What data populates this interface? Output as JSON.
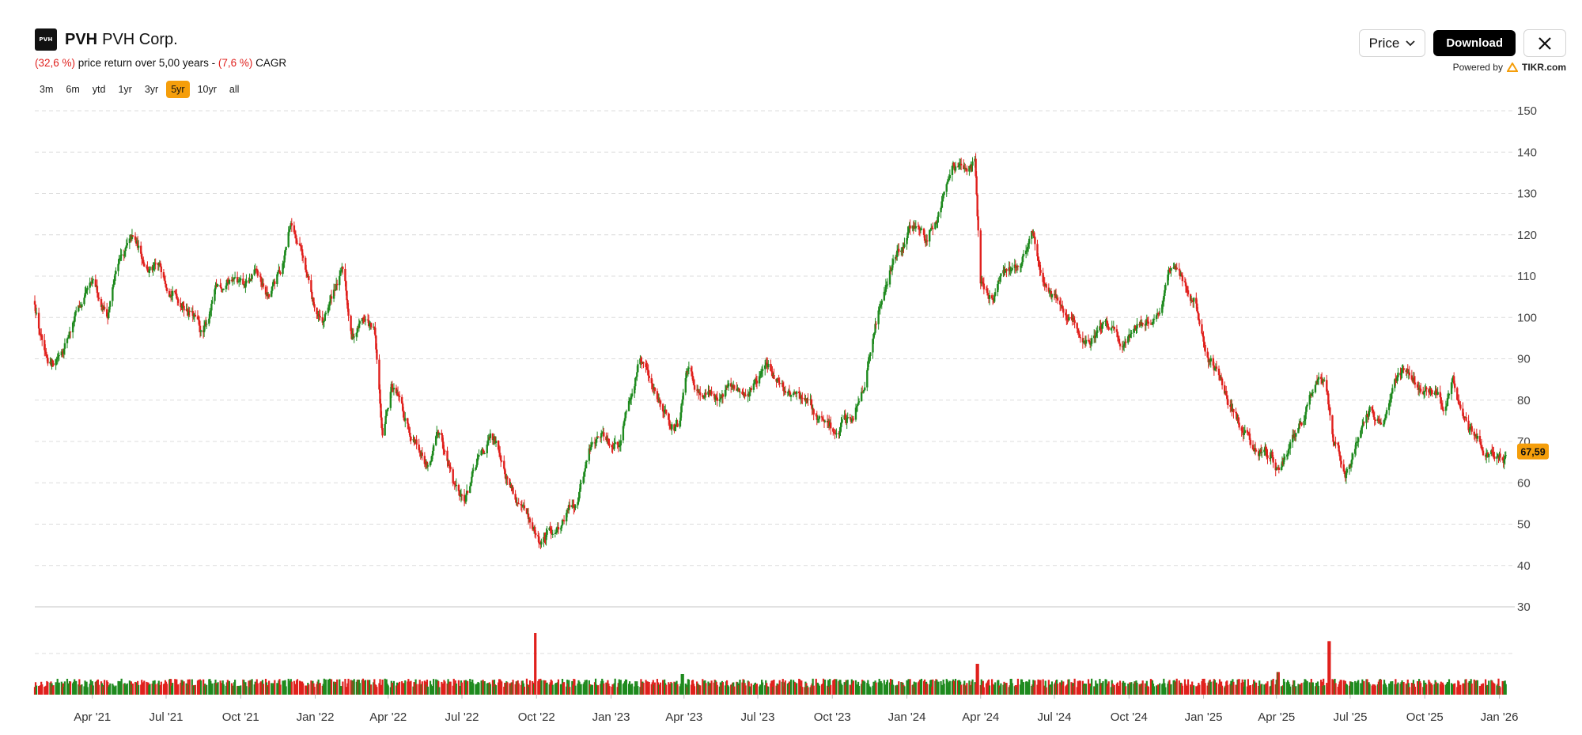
{
  "header": {
    "logo_text": "PVH",
    "ticker": "PVH",
    "company": "PVH Corp.",
    "return_pct": "(32,6 %)",
    "return_text": " price return over 5,00 years - ",
    "cagr_pct": "(7,6 %)",
    "cagr_text": " CAGR"
  },
  "ranges": [
    {
      "label": "3m",
      "active": false
    },
    {
      "label": "6m",
      "active": false
    },
    {
      "label": "ytd",
      "active": false
    },
    {
      "label": "1yr",
      "active": false
    },
    {
      "label": "3yr",
      "active": false
    },
    {
      "label": "5yr",
      "active": true
    },
    {
      "label": "10yr",
      "active": false
    },
    {
      "label": "all",
      "active": false
    }
  ],
  "controls": {
    "price_select": "Price",
    "download_label": "Download",
    "powered_by": "Powered by",
    "brand": "TIKR.com"
  },
  "colors": {
    "up": "#1e8a1e",
    "down": "#e0201d",
    "accent": "#f59e0b",
    "grid": "#dcdcdc"
  },
  "chart_data": {
    "type": "candlestick",
    "title": "",
    "ylim": [
      30,
      150
    ],
    "y_ticks": [
      150,
      140,
      130,
      120,
      110,
      100,
      90,
      80,
      70,
      60,
      50,
      40,
      30
    ],
    "x_ticks": [
      "Apr '21",
      "Jul '21",
      "Oct '21",
      "Jan '22",
      "Apr '22",
      "Jul '22",
      "Oct '22",
      "Jan '23",
      "Apr '23",
      "Jul '23",
      "Oct '23",
      "Jan '24",
      "Apr '24",
      "Jul '24",
      "Oct '24",
      "Jan '25",
      "Apr '25",
      "Jul '25",
      "Oct '25",
      "Jan '26"
    ],
    "x_range": [
      "2021-01-20",
      "2026-01-20"
    ],
    "last_price": "67,59",
    "last_value": 67.59,
    "price_path": [
      [
        "2021-01-20",
        104
      ],
      [
        "2021-02-05",
        86
      ],
      [
        "2021-02-20",
        92
      ],
      [
        "2021-03-10",
        100
      ],
      [
        "2021-04-01",
        106
      ],
      [
        "2021-04-20",
        101
      ],
      [
        "2021-05-05",
        115
      ],
      [
        "2021-05-20",
        118
      ],
      [
        "2021-06-10",
        112
      ],
      [
        "2021-07-01",
        110
      ],
      [
        "2021-07-15",
        106
      ],
      [
        "2021-08-01",
        102
      ],
      [
        "2021-08-15",
        95
      ],
      [
        "2021-09-01",
        106
      ],
      [
        "2021-09-20",
        110
      ],
      [
        "2021-10-05",
        106
      ],
      [
        "2021-10-20",
        110
      ],
      [
        "2021-11-05",
        104
      ],
      [
        "2021-11-20",
        111
      ],
      [
        "2021-12-01",
        123
      ],
      [
        "2021-12-15",
        118
      ],
      [
        "2021-12-28",
        104
      ],
      [
        "2022-01-10",
        97
      ],
      [
        "2022-01-25",
        107
      ],
      [
        "2022-02-05",
        111
      ],
      [
        "2022-02-15",
        95
      ],
      [
        "2022-03-01",
        100
      ],
      [
        "2022-03-15",
        96
      ],
      [
        "2022-03-25",
        70
      ],
      [
        "2022-04-05",
        84
      ],
      [
        "2022-04-20",
        76
      ],
      [
        "2022-05-05",
        72
      ],
      [
        "2022-05-20",
        65
      ],
      [
        "2022-06-05",
        72
      ],
      [
        "2022-06-20",
        60
      ],
      [
        "2022-07-05",
        57
      ],
      [
        "2022-07-20",
        64
      ],
      [
        "2022-08-05",
        70
      ],
      [
        "2022-08-20",
        66
      ],
      [
        "2022-09-05",
        57
      ],
      [
        "2022-09-20",
        50
      ],
      [
        "2022-10-05",
        45
      ],
      [
        "2022-10-20",
        48
      ],
      [
        "2022-11-05",
        52
      ],
      [
        "2022-11-20",
        57
      ],
      [
        "2022-12-05",
        68
      ],
      [
        "2022-12-20",
        72
      ],
      [
        "2023-01-10",
        71
      ],
      [
        "2023-01-25",
        82
      ],
      [
        "2023-02-05",
        90
      ],
      [
        "2023-02-20",
        84
      ],
      [
        "2023-03-10",
        78
      ],
      [
        "2023-03-25",
        73
      ],
      [
        "2023-04-05",
        86
      ],
      [
        "2023-04-20",
        83
      ],
      [
        "2023-05-10",
        81
      ],
      [
        "2023-05-25",
        84
      ],
      [
        "2023-06-10",
        80
      ],
      [
        "2023-06-25",
        84
      ],
      [
        "2023-07-10",
        88
      ],
      [
        "2023-07-25",
        85
      ],
      [
        "2023-08-10",
        82
      ],
      [
        "2023-08-25",
        80
      ],
      [
        "2023-09-10",
        76
      ],
      [
        "2023-09-25",
        73
      ],
      [
        "2023-10-10",
        72
      ],
      [
        "2023-10-25",
        76
      ],
      [
        "2023-11-10",
        86
      ],
      [
        "2023-11-25",
        100
      ],
      [
        "2023-12-10",
        112
      ],
      [
        "2023-12-25",
        118
      ],
      [
        "2024-01-10",
        122
      ],
      [
        "2024-01-25",
        118
      ],
      [
        "2024-02-10",
        128
      ],
      [
        "2024-02-25",
        137
      ],
      [
        "2024-03-10",
        134
      ],
      [
        "2024-03-25",
        140
      ],
      [
        "2024-04-01",
        108
      ],
      [
        "2024-04-15",
        104
      ],
      [
        "2024-05-01",
        110
      ],
      [
        "2024-05-20",
        115
      ],
      [
        "2024-06-05",
        121
      ],
      [
        "2024-06-15",
        110
      ],
      [
        "2024-07-01",
        104
      ],
      [
        "2024-07-20",
        100
      ],
      [
        "2024-08-05",
        92
      ],
      [
        "2024-08-20",
        97
      ],
      [
        "2024-09-05",
        99
      ],
      [
        "2024-09-20",
        95
      ],
      [
        "2024-10-05",
        98
      ],
      [
        "2024-10-20",
        97
      ],
      [
        "2024-11-05",
        102
      ],
      [
        "2024-11-20",
        110
      ],
      [
        "2024-12-05",
        109
      ],
      [
        "2024-12-20",
        105
      ],
      [
        "2025-01-05",
        92
      ],
      [
        "2025-01-20",
        86
      ],
      [
        "2025-02-05",
        78
      ],
      [
        "2025-02-20",
        72
      ],
      [
        "2025-03-10",
        66
      ],
      [
        "2025-03-25",
        68
      ],
      [
        "2025-04-05",
        62
      ],
      [
        "2025-04-20",
        70
      ],
      [
        "2025-05-05",
        75
      ],
      [
        "2025-05-20",
        85
      ],
      [
        "2025-06-01",
        84
      ],
      [
        "2025-06-10",
        70
      ],
      [
        "2025-06-25",
        63
      ],
      [
        "2025-07-10",
        70
      ],
      [
        "2025-07-25",
        77
      ],
      [
        "2025-08-10",
        75
      ],
      [
        "2025-08-25",
        87
      ],
      [
        "2025-09-10",
        86
      ],
      [
        "2025-09-25",
        84
      ],
      [
        "2025-10-10",
        82
      ],
      [
        "2025-10-25",
        78
      ],
      [
        "2025-11-05",
        85
      ],
      [
        "2025-11-15",
        75
      ],
      [
        "2025-12-01",
        70
      ],
      [
        "2025-12-20",
        67
      ],
      [
        "2026-01-10",
        67.59
      ]
    ],
    "volume_spikes": [
      [
        "2022-09-30",
        6.0
      ],
      [
        "2023-03-30",
        2.0
      ],
      [
        "2024-03-28",
        3.0
      ],
      [
        "2025-04-03",
        2.2
      ],
      [
        "2025-06-05",
        5.2
      ],
      [
        "2025-12-05",
        1.4
      ]
    ]
  }
}
